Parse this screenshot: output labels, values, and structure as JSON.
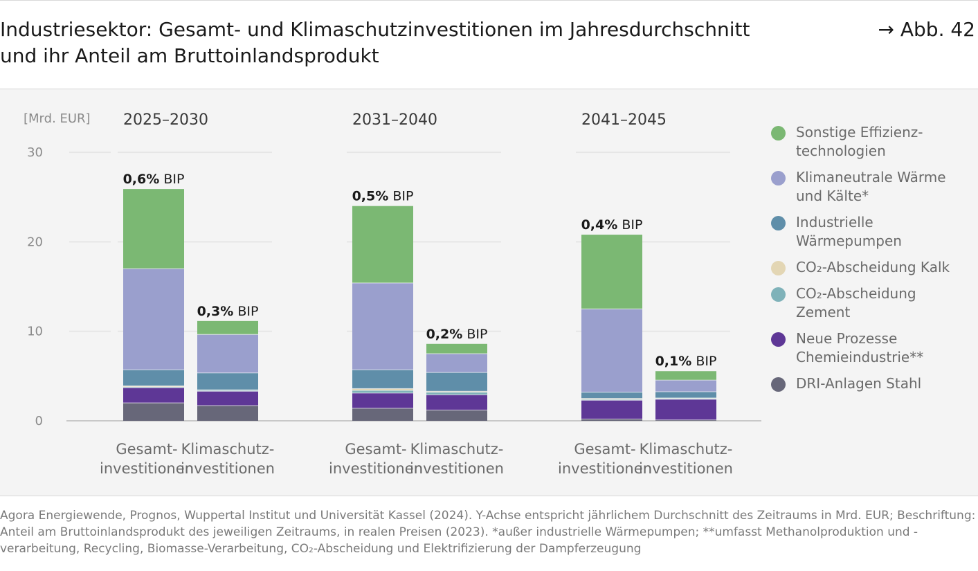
{
  "title": "Industriesektor: Gesamt- und Klimaschutzinvestitionen im Jahresdurchschnitt und ihr Anteil am Bruttoinlandsprodukt",
  "figure_ref": "→ Abb. 42",
  "footnote": "Agora Energiewende, Prognos, Wuppertal Institut und Universität Kassel (2024). Y-Achse entspricht jährlichem Durchschnitt des Zeitraums in Mrd. EUR; Beschriftung: Anteil am Bruttoinlandsprodukt des jeweiligen Zeitraums, in realen Preisen (2023). *außer industrielle Wärmepumpen; **umfasst Methanolproduktion und -verarbeitung, Recycling, Biomasse-Verarbeitung, CO₂-Abscheidung und Elektrifizierung der Dampferzeugung",
  "chart_data": {
    "type": "bar",
    "stacked": true,
    "unit_label": "[Mrd. EUR]",
    "ylim": [
      0,
      30
    ],
    "yticks": [
      0,
      10,
      20,
      30
    ],
    "grid": true,
    "legend_position": "right",
    "groups": [
      "2025–2030",
      "2031–2040",
      "2041–2045"
    ],
    "categories": [
      "Gesamt-\ninvestitionen",
      "Klimaschutz-\ninvestitionen"
    ],
    "series": [
      {
        "name": "DRI-Anlagen Stahl",
        "color": "#676779",
        "values": [
          [
            2.0,
            1.7
          ],
          [
            1.4,
            1.2
          ],
          [
            0.2,
            0.1
          ]
        ]
      },
      {
        "name": "Neue Prozesse Chemieindustrie**",
        "color": "#5e3796",
        "values": [
          [
            1.7,
            1.6
          ],
          [
            1.7,
            1.7
          ],
          [
            2.1,
            2.3
          ]
        ]
      },
      {
        "name": "CO₂-Abscheidung Zement",
        "color": "#7fb2b9",
        "values": [
          [
            0.1,
            0.1
          ],
          [
            0.3,
            0.3
          ],
          [
            0.1,
            0.1
          ]
        ]
      },
      {
        "name": "CO₂-Abscheidung Kalk",
        "color": "#e3d6b4",
        "values": [
          [
            0.1,
            0.05
          ],
          [
            0.2,
            0.1
          ],
          [
            0.1,
            0.05
          ]
        ]
      },
      {
        "name": "Industrielle Wärmepumpen",
        "color": "#5f8ea9",
        "values": [
          [
            1.8,
            1.9
          ],
          [
            2.1,
            2.1
          ],
          [
            0.7,
            0.7
          ]
        ]
      },
      {
        "name": "Klimaneutrale Wärme und Kälte*",
        "color": "#9a9fcd",
        "values": [
          [
            11.3,
            4.3
          ],
          [
            9.7,
            2.1
          ],
          [
            9.3,
            1.3
          ]
        ]
      },
      {
        "name": "Sonstige Effizienz-technologien",
        "color": "#7bb873",
        "values": [
          [
            8.9,
            1.5
          ],
          [
            8.6,
            1.1
          ],
          [
            8.3,
            1.0
          ]
        ]
      }
    ],
    "bar_labels": [
      [
        "0,6%",
        "0,3%"
      ],
      [
        "0,5%",
        "0,2%"
      ],
      [
        "0,4%",
        "0,1%"
      ]
    ],
    "bar_label_suffix": " BIP"
  },
  "legend_lines": [
    [
      "Sonstige Effizienz-",
      "technologien"
    ],
    [
      "Klimaneutrale Wärme",
      "und Kälte*"
    ],
    [
      "Industrielle",
      "Wärmepumpen"
    ],
    [
      "CO₂-Abscheidung Kalk"
    ],
    [
      "CO₂-Abscheidung",
      "Zement"
    ],
    [
      "Neue Prozesse",
      "Chemieindustrie**"
    ],
    [
      "DRI-Anlagen Stahl"
    ]
  ],
  "legend_colors": [
    "#7bb873",
    "#9a9fcd",
    "#5f8ea9",
    "#e3d6b4",
    "#7fb2b9",
    "#5e3796",
    "#676779"
  ]
}
